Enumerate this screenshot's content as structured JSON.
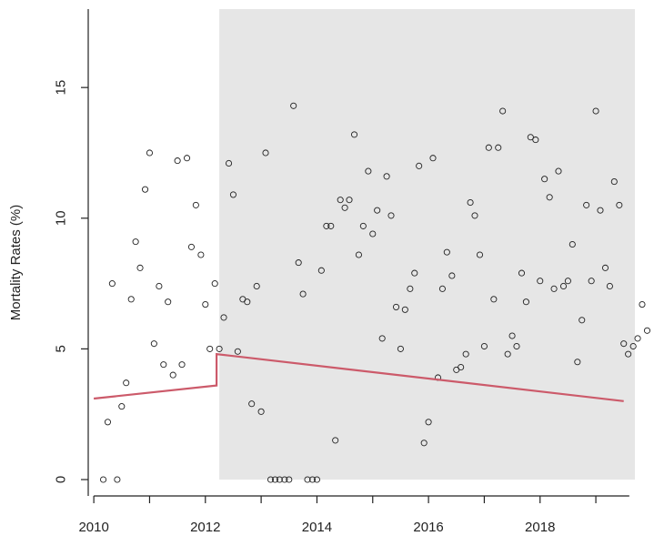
{
  "chart_data": {
    "type": "scatter",
    "title": "",
    "xlabel": "",
    "ylabel": "Mortality Rates (%)",
    "xlim": [
      2009.9,
      2019.7
    ],
    "ylim": [
      0,
      18
    ],
    "x_ticks": [
      2010,
      2012,
      2014,
      2016,
      2018
    ],
    "x_tick_labels": [
      "2010",
      "2012",
      "2014",
      "2016",
      "2018"
    ],
    "y_ticks": [
      0,
      5,
      10,
      15
    ],
    "y_tick_labels": [
      "0",
      "5",
      "10",
      "15"
    ],
    "grid": false,
    "legend": "none",
    "shaded_region": {
      "x_start": 2012.25,
      "x_end": 2019.7,
      "color": "#e6e6e6"
    },
    "colors": {
      "points": "#222222",
      "trend": "#cc5a6a",
      "shading": "#e6e6e6"
    },
    "points": [
      {
        "x": 2010.17,
        "y": 0.0
      },
      {
        "x": 2010.25,
        "y": 2.2
      },
      {
        "x": 2010.33,
        "y": 7.5
      },
      {
        "x": 2010.42,
        "y": 0.0
      },
      {
        "x": 2010.5,
        "y": 2.8
      },
      {
        "x": 2010.58,
        "y": 3.7
      },
      {
        "x": 2010.67,
        "y": 6.9
      },
      {
        "x": 2010.75,
        "y": 9.1
      },
      {
        "x": 2010.83,
        "y": 8.1
      },
      {
        "x": 2010.92,
        "y": 11.1
      },
      {
        "x": 2011.0,
        "y": 12.5
      },
      {
        "x": 2011.08,
        "y": 5.2
      },
      {
        "x": 2011.17,
        "y": 7.4
      },
      {
        "x": 2011.25,
        "y": 4.4
      },
      {
        "x": 2011.33,
        "y": 6.8
      },
      {
        "x": 2011.42,
        "y": 4.0
      },
      {
        "x": 2011.5,
        "y": 12.2
      },
      {
        "x": 2011.58,
        "y": 4.4
      },
      {
        "x": 2011.67,
        "y": 12.3
      },
      {
        "x": 2011.75,
        "y": 8.9
      },
      {
        "x": 2011.83,
        "y": 10.5
      },
      {
        "x": 2011.92,
        "y": 8.6
      },
      {
        "x": 2012.0,
        "y": 6.7
      },
      {
        "x": 2012.08,
        "y": 5.0
      },
      {
        "x": 2012.17,
        "y": 7.5
      },
      {
        "x": 2012.25,
        "y": 5.0
      },
      {
        "x": 2012.33,
        "y": 6.2
      },
      {
        "x": 2012.42,
        "y": 12.1
      },
      {
        "x": 2012.5,
        "y": 10.9
      },
      {
        "x": 2012.58,
        "y": 4.9
      },
      {
        "x": 2012.67,
        "y": 6.9
      },
      {
        "x": 2012.75,
        "y": 6.8
      },
      {
        "x": 2012.83,
        "y": 2.9
      },
      {
        "x": 2012.92,
        "y": 7.4
      },
      {
        "x": 2013.0,
        "y": 2.6
      },
      {
        "x": 2013.08,
        "y": 12.5
      },
      {
        "x": 2013.17,
        "y": 0.0
      },
      {
        "x": 2013.25,
        "y": 0.0
      },
      {
        "x": 2013.33,
        "y": 0.0
      },
      {
        "x": 2013.42,
        "y": 0.0
      },
      {
        "x": 2013.5,
        "y": 0.0
      },
      {
        "x": 2013.58,
        "y": 14.3
      },
      {
        "x": 2013.67,
        "y": 8.3
      },
      {
        "x": 2013.75,
        "y": 7.1
      },
      {
        "x": 2013.83,
        "y": 0.0
      },
      {
        "x": 2013.92,
        "y": 0.0
      },
      {
        "x": 2014.0,
        "y": 0.0
      },
      {
        "x": 2014.08,
        "y": 8.0
      },
      {
        "x": 2014.17,
        "y": 9.7
      },
      {
        "x": 2014.25,
        "y": 9.7
      },
      {
        "x": 2014.33,
        "y": 1.5
      },
      {
        "x": 2014.42,
        "y": 10.7
      },
      {
        "x": 2014.5,
        "y": 10.4
      },
      {
        "x": 2014.58,
        "y": 10.7
      },
      {
        "x": 2014.67,
        "y": 13.2
      },
      {
        "x": 2014.75,
        "y": 8.6
      },
      {
        "x": 2014.83,
        "y": 9.7
      },
      {
        "x": 2014.92,
        "y": 11.8
      },
      {
        "x": 2015.0,
        "y": 9.4
      },
      {
        "x": 2015.08,
        "y": 10.3
      },
      {
        "x": 2015.17,
        "y": 5.4
      },
      {
        "x": 2015.25,
        "y": 11.6
      },
      {
        "x": 2015.33,
        "y": 10.1
      },
      {
        "x": 2015.42,
        "y": 6.6
      },
      {
        "x": 2015.5,
        "y": 5.0
      },
      {
        "x": 2015.58,
        "y": 6.5
      },
      {
        "x": 2015.67,
        "y": 7.3
      },
      {
        "x": 2015.75,
        "y": 7.9
      },
      {
        "x": 2015.83,
        "y": 12.0
      },
      {
        "x": 2015.92,
        "y": 1.4
      },
      {
        "x": 2016.0,
        "y": 2.2
      },
      {
        "x": 2016.08,
        "y": 12.3
      },
      {
        "x": 2016.17,
        "y": 3.9
      },
      {
        "x": 2016.25,
        "y": 7.3
      },
      {
        "x": 2016.33,
        "y": 8.7
      },
      {
        "x": 2016.42,
        "y": 7.8
      },
      {
        "x": 2016.5,
        "y": 4.2
      },
      {
        "x": 2016.58,
        "y": 4.3
      },
      {
        "x": 2016.67,
        "y": 4.8
      },
      {
        "x": 2016.75,
        "y": 10.6
      },
      {
        "x": 2016.83,
        "y": 10.1
      },
      {
        "x": 2016.92,
        "y": 8.6
      },
      {
        "x": 2017.0,
        "y": 5.1
      },
      {
        "x": 2017.08,
        "y": 12.7
      },
      {
        "x": 2017.17,
        "y": 6.9
      },
      {
        "x": 2017.25,
        "y": 12.7
      },
      {
        "x": 2017.33,
        "y": 14.1
      },
      {
        "x": 2017.42,
        "y": 4.8
      },
      {
        "x": 2017.5,
        "y": 5.5
      },
      {
        "x": 2017.58,
        "y": 5.1
      },
      {
        "x": 2017.67,
        "y": 7.9
      },
      {
        "x": 2017.75,
        "y": 6.8
      },
      {
        "x": 2017.83,
        "y": 13.1
      },
      {
        "x": 2017.92,
        "y": 13.0
      },
      {
        "x": 2018.0,
        "y": 7.6
      },
      {
        "x": 2018.08,
        "y": 11.5
      },
      {
        "x": 2018.17,
        "y": 10.8
      },
      {
        "x": 2018.25,
        "y": 7.3
      },
      {
        "x": 2018.33,
        "y": 11.8
      },
      {
        "x": 2018.42,
        "y": 7.4
      },
      {
        "x": 2018.5,
        "y": 7.6
      },
      {
        "x": 2018.58,
        "y": 9.0
      },
      {
        "x": 2018.67,
        "y": 4.5
      },
      {
        "x": 2018.75,
        "y": 6.1
      },
      {
        "x": 2018.83,
        "y": 10.5
      },
      {
        "x": 2018.92,
        "y": 7.6
      },
      {
        "x": 2019.0,
        "y": 14.1
      },
      {
        "x": 2019.08,
        "y": 10.3
      },
      {
        "x": 2019.17,
        "y": 8.1
      },
      {
        "x": 2019.25,
        "y": 7.4
      },
      {
        "x": 2019.33,
        "y": 11.4
      },
      {
        "x": 2019.42,
        "y": 10.5
      },
      {
        "x": 2019.5,
        "y": 5.2
      },
      {
        "x": 2019.58,
        "y": 4.8
      },
      {
        "x": 2019.67,
        "y": 5.1
      },
      {
        "x": 2019.75,
        "y": 5.4
      },
      {
        "x": 2019.83,
        "y": 6.7
      },
      {
        "x": 2019.92,
        "y": 5.7
      }
    ],
    "trend_segments": [
      {
        "points": [
          [
            2010.0,
            3.1
          ],
          [
            2012.2,
            3.6
          ],
          [
            2012.2,
            4.8
          ],
          [
            2019.5,
            3.0
          ]
        ]
      }
    ]
  }
}
